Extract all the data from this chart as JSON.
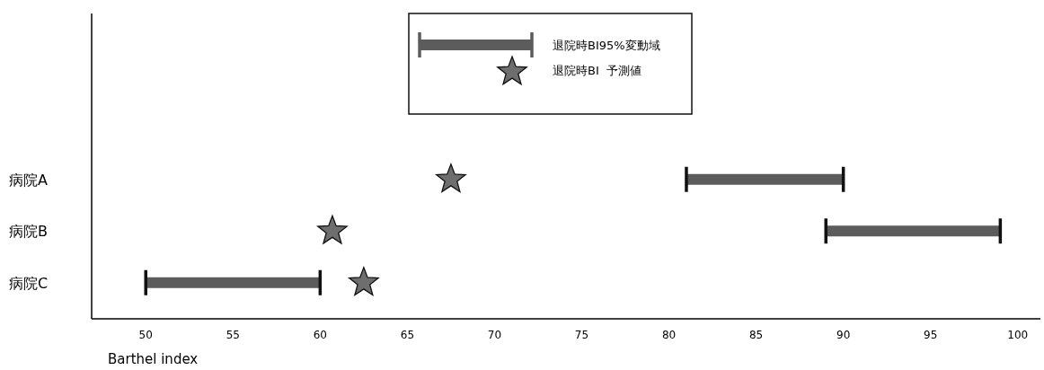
{
  "chart_data": {
    "type": "bar",
    "orientation": "horizontal",
    "xlabel": "Barthel index",
    "categories": [
      "病院A",
      "病院B",
      "病院C"
    ],
    "xlim": [
      47,
      101.3
    ],
    "xticks": [
      50,
      55,
      60,
      65,
      70,
      75,
      80,
      85,
      90,
      95,
      100
    ],
    "legend": "top",
    "marker": "star",
    "grid": false,
    "series": [
      {
        "name": "退院時BI95%変動域",
        "type": "bar",
        "base": [
          81,
          89,
          50
        ],
        "values": [
          9,
          10,
          10
        ],
        "color": "#5c5c5c"
      },
      {
        "name": "退院時BI  予測値",
        "type": "scatter",
        "values": [
          67.5,
          60.7,
          62.5
        ],
        "color": "#6e6e6e"
      }
    ]
  }
}
